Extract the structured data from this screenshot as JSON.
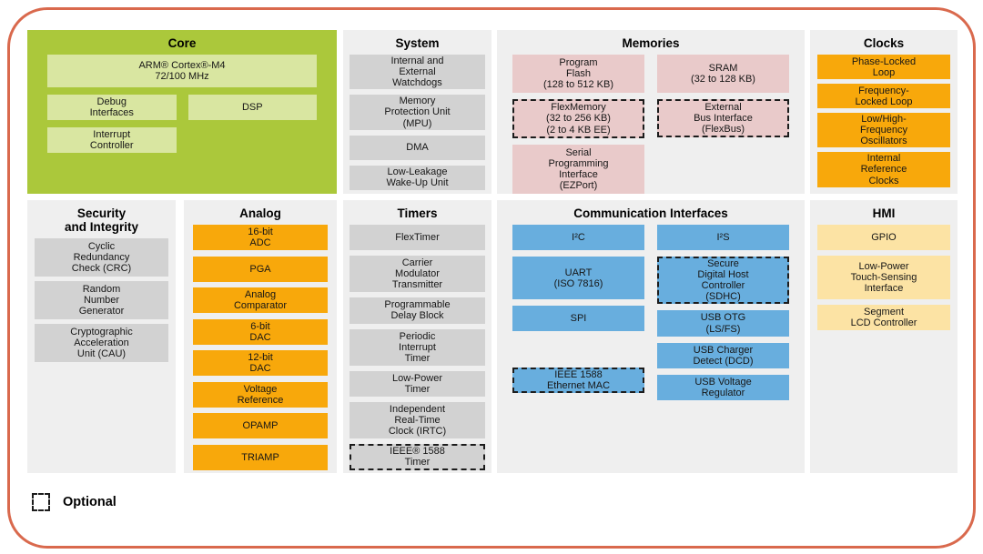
{
  "diagram": {
    "kind": "microcontroller-block-diagram"
  },
  "colors": {
    "frame_border": "#d9694d",
    "core_panel": "#abc83b",
    "core_block": "#d9e6a1",
    "panel_background": "#efefef",
    "gray_block": "#d2d2d2",
    "memory_block": "#e9caca",
    "orange_block": "#f8a80b",
    "comm_block": "#68aede",
    "hmi_block": "#fce3a4"
  },
  "legend": {
    "label": "Optional"
  },
  "sections": {
    "core": {
      "title": "Core",
      "blocks": {
        "arm": {
          "label": "ARM® Cortex®-M4\n72/100 MHz"
        },
        "debug": {
          "label": "Debug\nInterfaces"
        },
        "dsp": {
          "label": "DSP"
        },
        "interrupt": {
          "label": "Interrupt\nController"
        }
      }
    },
    "system": {
      "title": "System",
      "blocks": {
        "watchdogs": {
          "label": "Internal and\nExternal\nWatchdogs"
        },
        "mpu": {
          "label": "Memory\nProtection Unit\n(MPU)"
        },
        "dma": {
          "label": "DMA"
        },
        "llwu": {
          "label": "Low-Leakage\nWake-Up Unit"
        }
      }
    },
    "memories": {
      "title": "Memories",
      "blocks": {
        "program_flash": {
          "label": "Program\nFlash\n(128 to 512 KB)"
        },
        "flexmemory": {
          "label": "FlexMemory\n(32 to 256 KB)\n(2 to 4 KB EE)",
          "optional": true
        },
        "ezport": {
          "label": "Serial\nProgramming\nInterface\n(EZPort)"
        },
        "sram": {
          "label": "SRAM\n(32 to 128 KB)"
        },
        "external_bus": {
          "label": "External\nBus Interface\n(FlexBus)",
          "optional": true
        }
      }
    },
    "clocks": {
      "title": "Clocks",
      "blocks": {
        "pll": {
          "label": "Phase-Locked\nLoop"
        },
        "fll": {
          "label": "Frequency-\nLocked Loop"
        },
        "oscillators": {
          "label": "Low/High-\nFrequency\nOscillators"
        },
        "irc": {
          "label": "Internal\nReference\nClocks"
        }
      }
    },
    "security": {
      "title": "Security\nand Integrity",
      "blocks": {
        "crc": {
          "label": "Cyclic\nRedundancy\nCheck (CRC)"
        },
        "rng": {
          "label": "Random\nNumber\nGenerator"
        },
        "cau": {
          "label": "Cryptographic\nAcceleration\nUnit (CAU)"
        }
      }
    },
    "analog": {
      "title": "Analog",
      "blocks": {
        "adc": {
          "label": "16-bit\nADC"
        },
        "pga": {
          "label": "PGA"
        },
        "comparator": {
          "label": "Analog\nComparator"
        },
        "dac6": {
          "label": "6-bit\nDAC"
        },
        "dac12": {
          "label": "12-bit\nDAC"
        },
        "vref": {
          "label": "Voltage\nReference"
        },
        "opamp": {
          "label": "OPAMP"
        },
        "triamp": {
          "label": "TRIAMP"
        }
      }
    },
    "timers": {
      "title": "Timers",
      "blocks": {
        "flextimer": {
          "label": "FlexTimer"
        },
        "cmt": {
          "label": "Carrier\nModulator\nTransmitter"
        },
        "pdb": {
          "label": "Programmable\nDelay Block"
        },
        "pit": {
          "label": "Periodic\nInterrupt\nTimer"
        },
        "lptimer": {
          "label": "Low-Power\nTimer"
        },
        "irtc": {
          "label": "Independent\nReal-Time\nClock (IRTC)"
        },
        "ieee1588_timer": {
          "label": "IEEE® 1588\nTimer",
          "optional": true
        }
      }
    },
    "comm": {
      "title": "Communication Interfaces",
      "blocks": {
        "i2c": {
          "label": "I²C"
        },
        "uart": {
          "label": "UART\n(ISO 7816)"
        },
        "spi": {
          "label": "SPI"
        },
        "ethernet_mac": {
          "label": "IEEE 1588\nEthernet MAC",
          "optional": true
        },
        "i2s": {
          "label": "I²S"
        },
        "sdhc": {
          "label": "Secure\nDigital Host\nController\n(SDHC)",
          "optional": true
        },
        "usb_otg": {
          "label": "USB OTG\n(LS/FS)"
        },
        "usb_dcd": {
          "label": "USB Charger\nDetect (DCD)"
        },
        "usb_vreg": {
          "label": "USB Voltage\nRegulator"
        }
      }
    },
    "hmi": {
      "title": "HMI",
      "blocks": {
        "gpio": {
          "label": "GPIO"
        },
        "tsi": {
          "label": "Low-Power\nTouch-Sensing\nInterface"
        },
        "slcd": {
          "label": "Segment\nLCD Controller"
        }
      }
    }
  }
}
